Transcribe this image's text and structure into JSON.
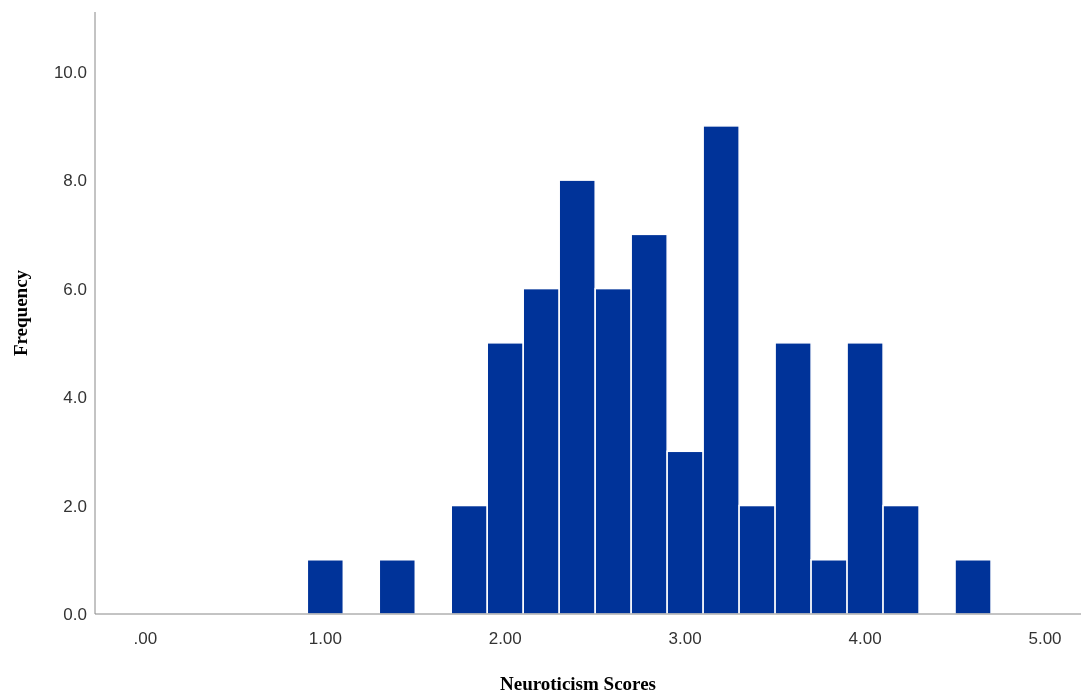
{
  "chart_data": {
    "type": "histogram",
    "xlabel": "Neuroticism Scores",
    "ylabel": "Frequency",
    "bins": [
      0.9,
      1.1,
      1.3,
      1.5,
      1.7,
      1.9,
      2.1,
      2.3,
      2.5,
      2.7,
      2.9,
      3.1,
      3.3,
      3.5,
      3.7,
      3.9,
      4.1,
      4.3,
      4.5,
      4.7
    ],
    "values": [
      1,
      0,
      1,
      0,
      2,
      5,
      6,
      8,
      6,
      7,
      3,
      9,
      2,
      5,
      1,
      5,
      2,
      0,
      1
    ],
    "color": "#003399",
    "xlim": [
      -0.28,
      5.2
    ],
    "xticks": [
      {
        "value": 0,
        "label": ".00"
      },
      {
        "value": 1,
        "label": "1.00"
      },
      {
        "value": 2,
        "label": "2.00"
      },
      {
        "value": 3,
        "label": "3.00"
      },
      {
        "value": 4,
        "label": "4.00"
      },
      {
        "value": 5,
        "label": "5.00"
      }
    ],
    "ylim": [
      0,
      11.1
    ],
    "yticks": [
      {
        "value": 0,
        "label": "0.0"
      },
      {
        "value": 2,
        "label": "2.0"
      },
      {
        "value": 4,
        "label": "4.0"
      },
      {
        "value": 6,
        "label": "6.0"
      },
      {
        "value": 8,
        "label": "8.0"
      },
      {
        "value": 10,
        "label": "10.0"
      }
    ],
    "grid": false
  }
}
